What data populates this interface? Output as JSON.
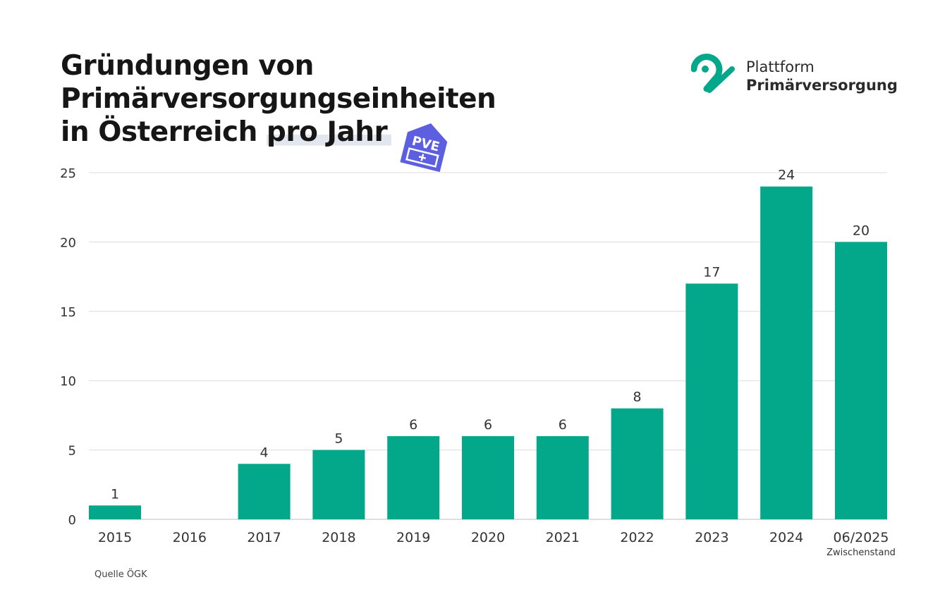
{
  "title_lines": [
    "Gründungen von",
    "Primärversorgungseinheiten",
    "in Österreich",
    "pro Jahr"
  ],
  "brand": {
    "line1": "Plattform",
    "line2": "Primärversorgung",
    "color": "#03a88a"
  },
  "badge": {
    "text": "PVE",
    "color": "#5b5fe0"
  },
  "source": "Quelle ÖGK",
  "chart_data": {
    "type": "bar",
    "categories": [
      "2015",
      "2016",
      "2017",
      "2018",
      "2019",
      "2020",
      "2021",
      "2022",
      "2023",
      "2024",
      "06/2025"
    ],
    "category_sublabels": [
      "",
      "",
      "",
      "",
      "",
      "",
      "",
      "",
      "",
      "",
      "Zwischenstand"
    ],
    "values": [
      1,
      0,
      4,
      5,
      6,
      6,
      6,
      8,
      17,
      24,
      20
    ],
    "data_labels": [
      "1",
      "",
      "4",
      "5",
      "6",
      "6",
      "6",
      "8",
      "17",
      "24",
      "20"
    ],
    "yticks": [
      0,
      5,
      10,
      15,
      20,
      25
    ],
    "ylim": [
      0,
      25
    ],
    "grid": true,
    "bar_color": "#03a88a",
    "title": "Gründungen von Primärversorgungseinheiten in Österreich pro Jahr",
    "xlabel": "",
    "ylabel": ""
  }
}
